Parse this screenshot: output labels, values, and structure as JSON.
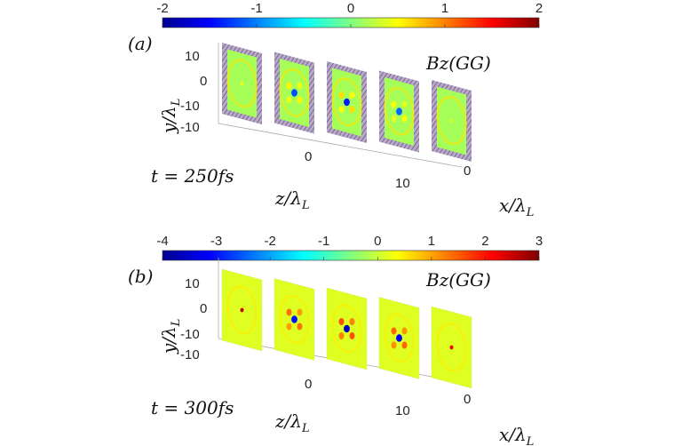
{
  "chart_data": [
    {
      "type": "heatmap",
      "panel_label": "(a)",
      "time_label": "t = 250fs",
      "colorbar": {
        "label": "Bz(GG)",
        "ticks": [
          "-2",
          "-1",
          "0",
          "1",
          "2"
        ],
        "range": [
          -2,
          2
        ],
        "colormap": "jet"
      },
      "axes": {
        "xlabel": "x/λL",
        "ylabel": "y/λL",
        "zlabel": "z/λL",
        "y_ticks": [
          "10",
          "0",
          "-10",
          "-10"
        ],
        "z_ticks": [
          "0",
          "10"
        ],
        "x_ticks": [
          "0"
        ]
      },
      "slice_count": 5,
      "slice_peak_values": [
        0.4,
        -1.2,
        -1.4,
        -1.1,
        0.3
      ]
    },
    {
      "type": "heatmap",
      "panel_label": "(b)",
      "time_label": "t = 300fs",
      "colorbar": {
        "label": "Bz(GG)",
        "ticks": [
          "-4",
          "-3",
          "-2",
          "-1",
          "0",
          "1",
          "2",
          "3"
        ],
        "range": [
          -4,
          3
        ],
        "colormap": "jet"
      },
      "axes": {
        "xlabel": "x/λL",
        "ylabel": "y/λL",
        "zlabel": "z/λL",
        "y_ticks": [
          "10",
          "0",
          "-10",
          "-10"
        ],
        "z_ticks": [
          "0",
          "10"
        ],
        "x_ticks": [
          "0"
        ]
      },
      "slice_count": 5,
      "slice_peak_values": [
        2.5,
        -3.0,
        -3.5,
        -3.2,
        2.2
      ]
    }
  ]
}
